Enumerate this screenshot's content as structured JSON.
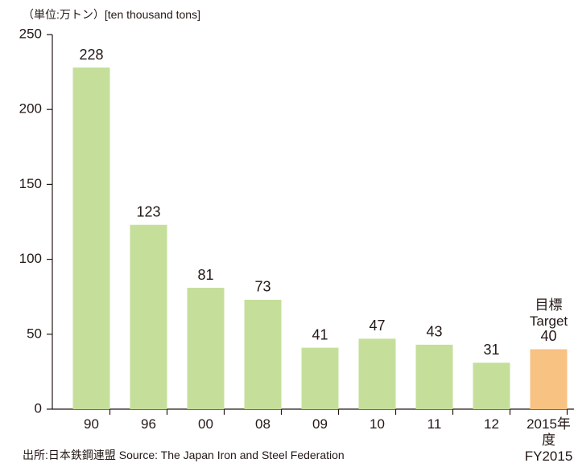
{
  "chart_data": {
    "type": "bar",
    "unit_label": "（単位:万トン）[ten thousand tons]",
    "source": "出所:日本鉄鋼連盟 Source: The Japan Iron and Steel Federation",
    "categories": [
      "90",
      "96",
      "00",
      "08",
      "09",
      "10",
      "11",
      "12",
      "2015年度\nFY2015"
    ],
    "values": [
      228,
      123,
      81,
      73,
      41,
      47,
      43,
      31,
      40
    ],
    "colors": [
      "#c5df9b",
      "#c5df9b",
      "#c5df9b",
      "#c5df9b",
      "#c5df9b",
      "#c5df9b",
      "#c5df9b",
      "#c5df9b",
      "#f8c283"
    ],
    "annotation": "目標\nTarget",
    "ylim": [
      0,
      250
    ],
    "yticks": [
      0,
      50,
      100,
      150,
      200,
      250
    ],
    "grid": false
  }
}
